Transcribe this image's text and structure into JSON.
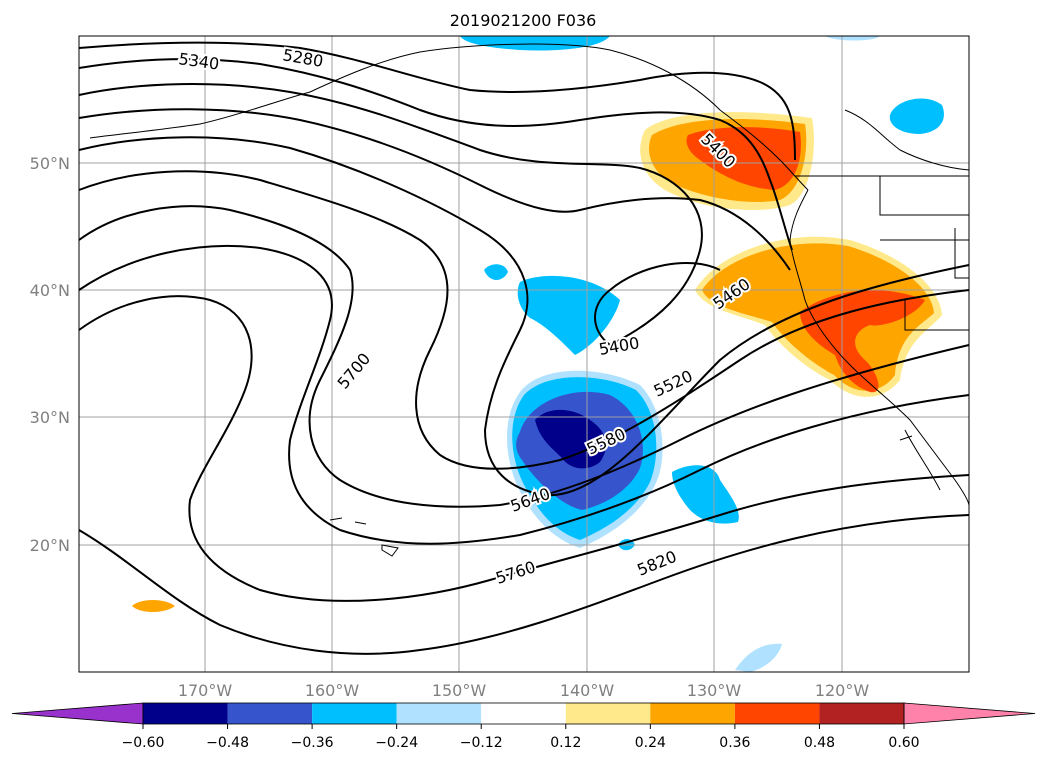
{
  "title": "2019021200 F036",
  "lat_ticks": [
    "50°N",
    "40°N",
    "30°N",
    "20°N"
  ],
  "lon_ticks": [
    "170°W",
    "160°W",
    "150°W",
    "140°W",
    "130°W",
    "120°W"
  ],
  "contour_labels": [
    "5340",
    "5280",
    "5400",
    "5460",
    "5400",
    "5520",
    "5700",
    "5580",
    "5640",
    "5760",
    "5820"
  ],
  "colorbar": {
    "ticks": [
      "−0.60",
      "−0.48",
      "−0.36",
      "−0.24",
      "−0.12",
      "0.12",
      "0.24",
      "0.36",
      "0.48",
      "0.60"
    ],
    "colors": [
      "#9932cc",
      "#00008b",
      "#3655cc",
      "#00bfff",
      "#b0e2ff",
      "#ffffff",
      "#ffe98a",
      "#ffa500",
      "#ff4500",
      "#b22222",
      "#ff82ab"
    ]
  }
}
